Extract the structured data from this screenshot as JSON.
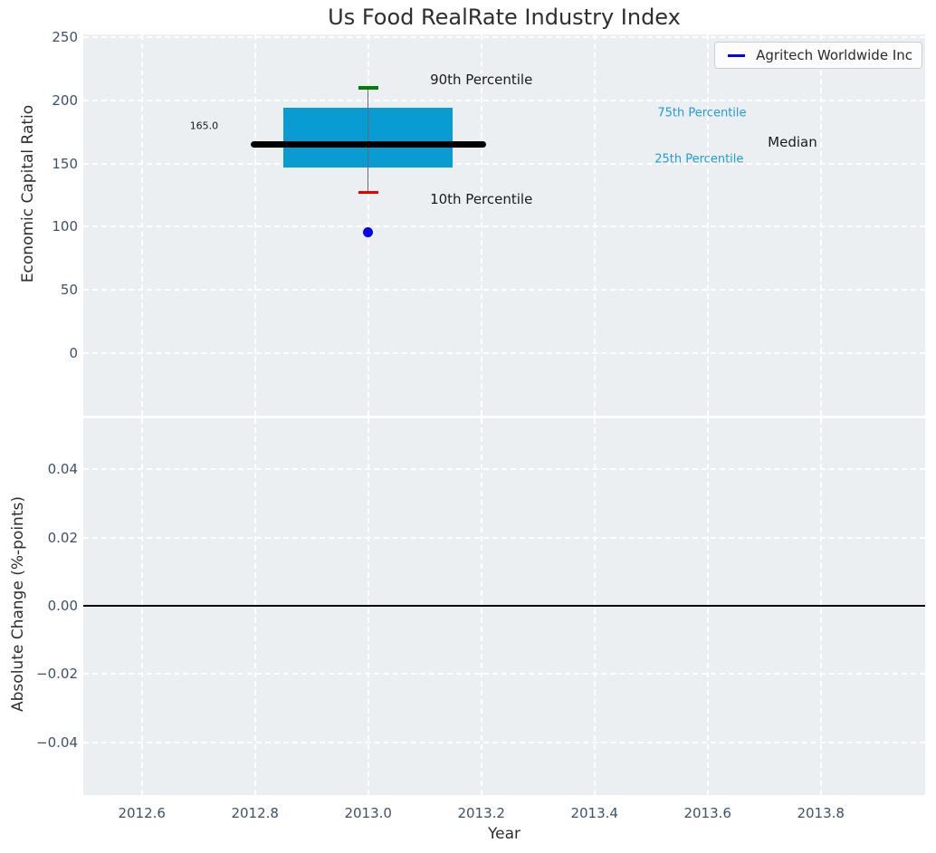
{
  "figure": {
    "title": "Us Food RealRate Industry Index"
  },
  "colors": {
    "figure_bg": "#ffffff",
    "axes_bg": "#eceff1",
    "grid": "#ffffff",
    "tick_label": "#3e5266",
    "axis_label": "#2e2e2e",
    "title": "#2e2e2e",
    "box_fill": "#089cd3",
    "median_line": "#000000",
    "whisker": "#5f6a72",
    "p90_cap": "#008000",
    "p10_cap": "#e60000",
    "company_point": "#0000ee",
    "annotation_blue": "#1e9cd6",
    "zero_line": "#000000"
  },
  "legend": {
    "position": "upper right",
    "entries": [
      {
        "label": "Agritech Worldwide Inc",
        "color": "#0000ee"
      }
    ]
  },
  "chart_data": [
    {
      "type": "boxplot",
      "title": "Us Food RealRate Industry Index",
      "ylabel": "Economic Capital Ratio",
      "xlabel": "",
      "xlim": [
        2012.4965,
        2013.9845
      ],
      "ylim": [
        -49.5,
        252.1
      ],
      "grid": true,
      "show_xtick_labels": false,
      "xticks": [
        {
          "v": 2012.6,
          "label": "2012.6"
        },
        {
          "v": 2012.8,
          "label": "2012.8"
        },
        {
          "v": 2013.0,
          "label": "2013.0"
        },
        {
          "v": 2013.2,
          "label": "2013.2"
        },
        {
          "v": 2013.4,
          "label": "2013.4"
        },
        {
          "v": 2013.6,
          "label": "2013.6"
        },
        {
          "v": 2013.8,
          "label": "2013.8"
        }
      ],
      "yticks": [
        {
          "v": 0,
          "label": "0"
        },
        {
          "v": 50,
          "label": "50"
        },
        {
          "v": 100,
          "label": "100"
        },
        {
          "v": 150,
          "label": "150"
        },
        {
          "v": 200,
          "label": "200"
        },
        {
          "v": 250,
          "label": "250"
        }
      ],
      "box": {
        "x": 2013.0,
        "median": 165.0,
        "q1": 147,
        "q3": 194,
        "p10": 127,
        "p90": 210,
        "box_half_width": 0.15,
        "median_half_width": 0.208,
        "cap_half_width": 0.0176,
        "median_label": "165.0"
      },
      "points": [
        {
          "x": 2013.0,
          "y": 95.5,
          "series": "Agritech Worldwide Inc"
        }
      ],
      "annotations": [
        {
          "text": "90th Percentile",
          "x": 2013.2,
          "y": 216,
          "color": "#1a1a1a",
          "size": 15
        },
        {
          "text": "10th Percentile",
          "x": 2013.2,
          "y": 122,
          "color": "#1a1a1a",
          "size": 15
        },
        {
          "text": "75th Percentile",
          "x": 2013.59,
          "y": 190,
          "color": "#1e9cd6",
          "size": 13
        },
        {
          "text": "25th Percentile",
          "x": 2013.585,
          "y": 153,
          "color": "#1e9cd6",
          "size": 13
        },
        {
          "text": "Median",
          "x": 2013.75,
          "y": 166.5,
          "color": "#1a1a1a",
          "size": 15
        },
        {
          "text": "165.0",
          "x": 2012.71,
          "y": 179.5,
          "color": "#1a1a1a",
          "size": 11
        }
      ]
    },
    {
      "type": "line",
      "title": "",
      "ylabel": "Absolute Change (%-points)",
      "xlabel": "Year",
      "xlim": [
        2012.4965,
        2013.9845
      ],
      "ylim": [
        -0.0555,
        0.0549
      ],
      "grid": true,
      "show_xtick_labels": true,
      "xticks": [
        {
          "v": 2012.6,
          "label": "2012.6"
        },
        {
          "v": 2012.8,
          "label": "2012.8"
        },
        {
          "v": 2013.0,
          "label": "2013.0"
        },
        {
          "v": 2013.2,
          "label": "2013.2"
        },
        {
          "v": 2013.4,
          "label": "2013.4"
        },
        {
          "v": 2013.6,
          "label": "2013.6"
        },
        {
          "v": 2013.8,
          "label": "2013.8"
        }
      ],
      "yticks": [
        {
          "v": 0.04,
          "label": "0.04"
        },
        {
          "v": 0.02,
          "label": "0.02"
        },
        {
          "v": 0.0,
          "label": "0.00"
        },
        {
          "v": -0.02,
          "label": "−0.02"
        },
        {
          "v": -0.04,
          "label": "−0.04"
        }
      ],
      "zero_line": {
        "y": 0,
        "color": "#000000",
        "width": 2
      },
      "series": []
    }
  ]
}
